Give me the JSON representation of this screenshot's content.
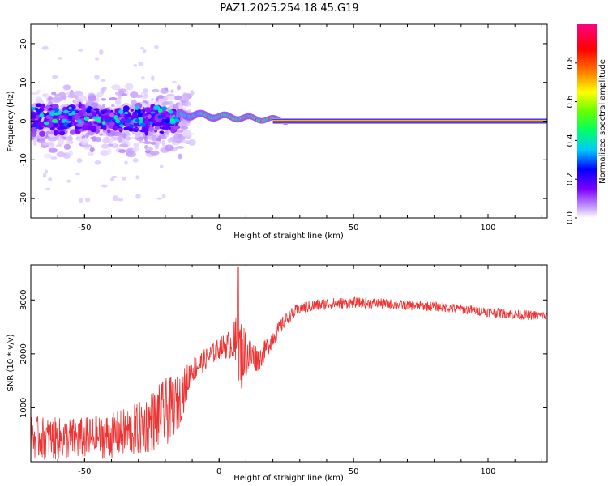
{
  "title": "PAZ1.2025.254.18.45.G19",
  "chart_data": [
    {
      "type": "heatmap",
      "xlabel": "Height of straight line (km)",
      "ylabel": "Frequency (Hz)",
      "xlim": [
        -70,
        122
      ],
      "ylim": [
        -25,
        25
      ],
      "xticks": [
        -50,
        0,
        50,
        100
      ],
      "yticks": [
        -20,
        -10,
        0,
        10,
        20
      ],
      "xtick_labels": [
        "-50",
        "0",
        "50",
        "100"
      ],
      "ytick_labels": [
        "-20",
        "-10",
        "0",
        "10",
        "20"
      ],
      "colorbar": {
        "label": "Normalized spectral amplitude",
        "range": [
          0,
          1
        ],
        "ticks": [
          0.0,
          0.2,
          0.4,
          0.6,
          0.8
        ],
        "tick_labels": [
          "0.0",
          "0.2",
          "0.4",
          "0.6",
          "0.8"
        ],
        "colormap": [
          "#ffffff",
          "#c9a6ff",
          "#7a00ff",
          "#0000ff",
          "#00c8ff",
          "#00ff66",
          "#66ff00",
          "#ffff00",
          "#ff8000",
          "#ff0000",
          "#ff0080"
        ]
      },
      "description_points": {
        "spread_region": {
          "x_start": -70,
          "x_end": -15,
          "freq_spread_hz": 8
        },
        "transition_region": {
          "x_start": -15,
          "x_end": 25
        },
        "tone_region": {
          "x_start": 20,
          "x_end": 122,
          "center_freq_hz": 0
        }
      }
    },
    {
      "type": "line",
      "xlabel": "Height of straight line (km)",
      "ylabel": "SNR (10 * v/v)",
      "xlim": [
        -70,
        122
      ],
      "ylim": [
        0,
        3650
      ],
      "xticks": [
        -50,
        0,
        50,
        100
      ],
      "yticks": [
        1000,
        2000,
        3000
      ],
      "xtick_labels": [
        "-50",
        "0",
        "50",
        "100"
      ],
      "ytick_labels": [
        "1000",
        "2000",
        "3000"
      ],
      "series": [
        {
          "name": "SNR",
          "color": "#ee3333",
          "x": [
            -70,
            -60,
            -50,
            -40,
            -30,
            -20,
            -15,
            -10,
            -5,
            0,
            5,
            7,
            10,
            15,
            20,
            25,
            30,
            40,
            50,
            60,
            70,
            80,
            90,
            100,
            110,
            122
          ],
          "values": [
            450,
            420,
            430,
            480,
            600,
            900,
            1100,
            1700,
            1900,
            2100,
            2200,
            2000,
            2000,
            1900,
            2300,
            2650,
            2850,
            2930,
            2950,
            2930,
            2900,
            2880,
            2830,
            2780,
            2730,
            2700
          ],
          "noise": [
            400,
            400,
            400,
            420,
            500,
            650,
            500,
            250,
            200,
            200,
            300,
            900,
            450,
            200,
            180,
            120,
            120,
            110,
            100,
            100,
            90,
            90,
            90,
            90,
            90,
            90
          ]
        }
      ]
    }
  ]
}
